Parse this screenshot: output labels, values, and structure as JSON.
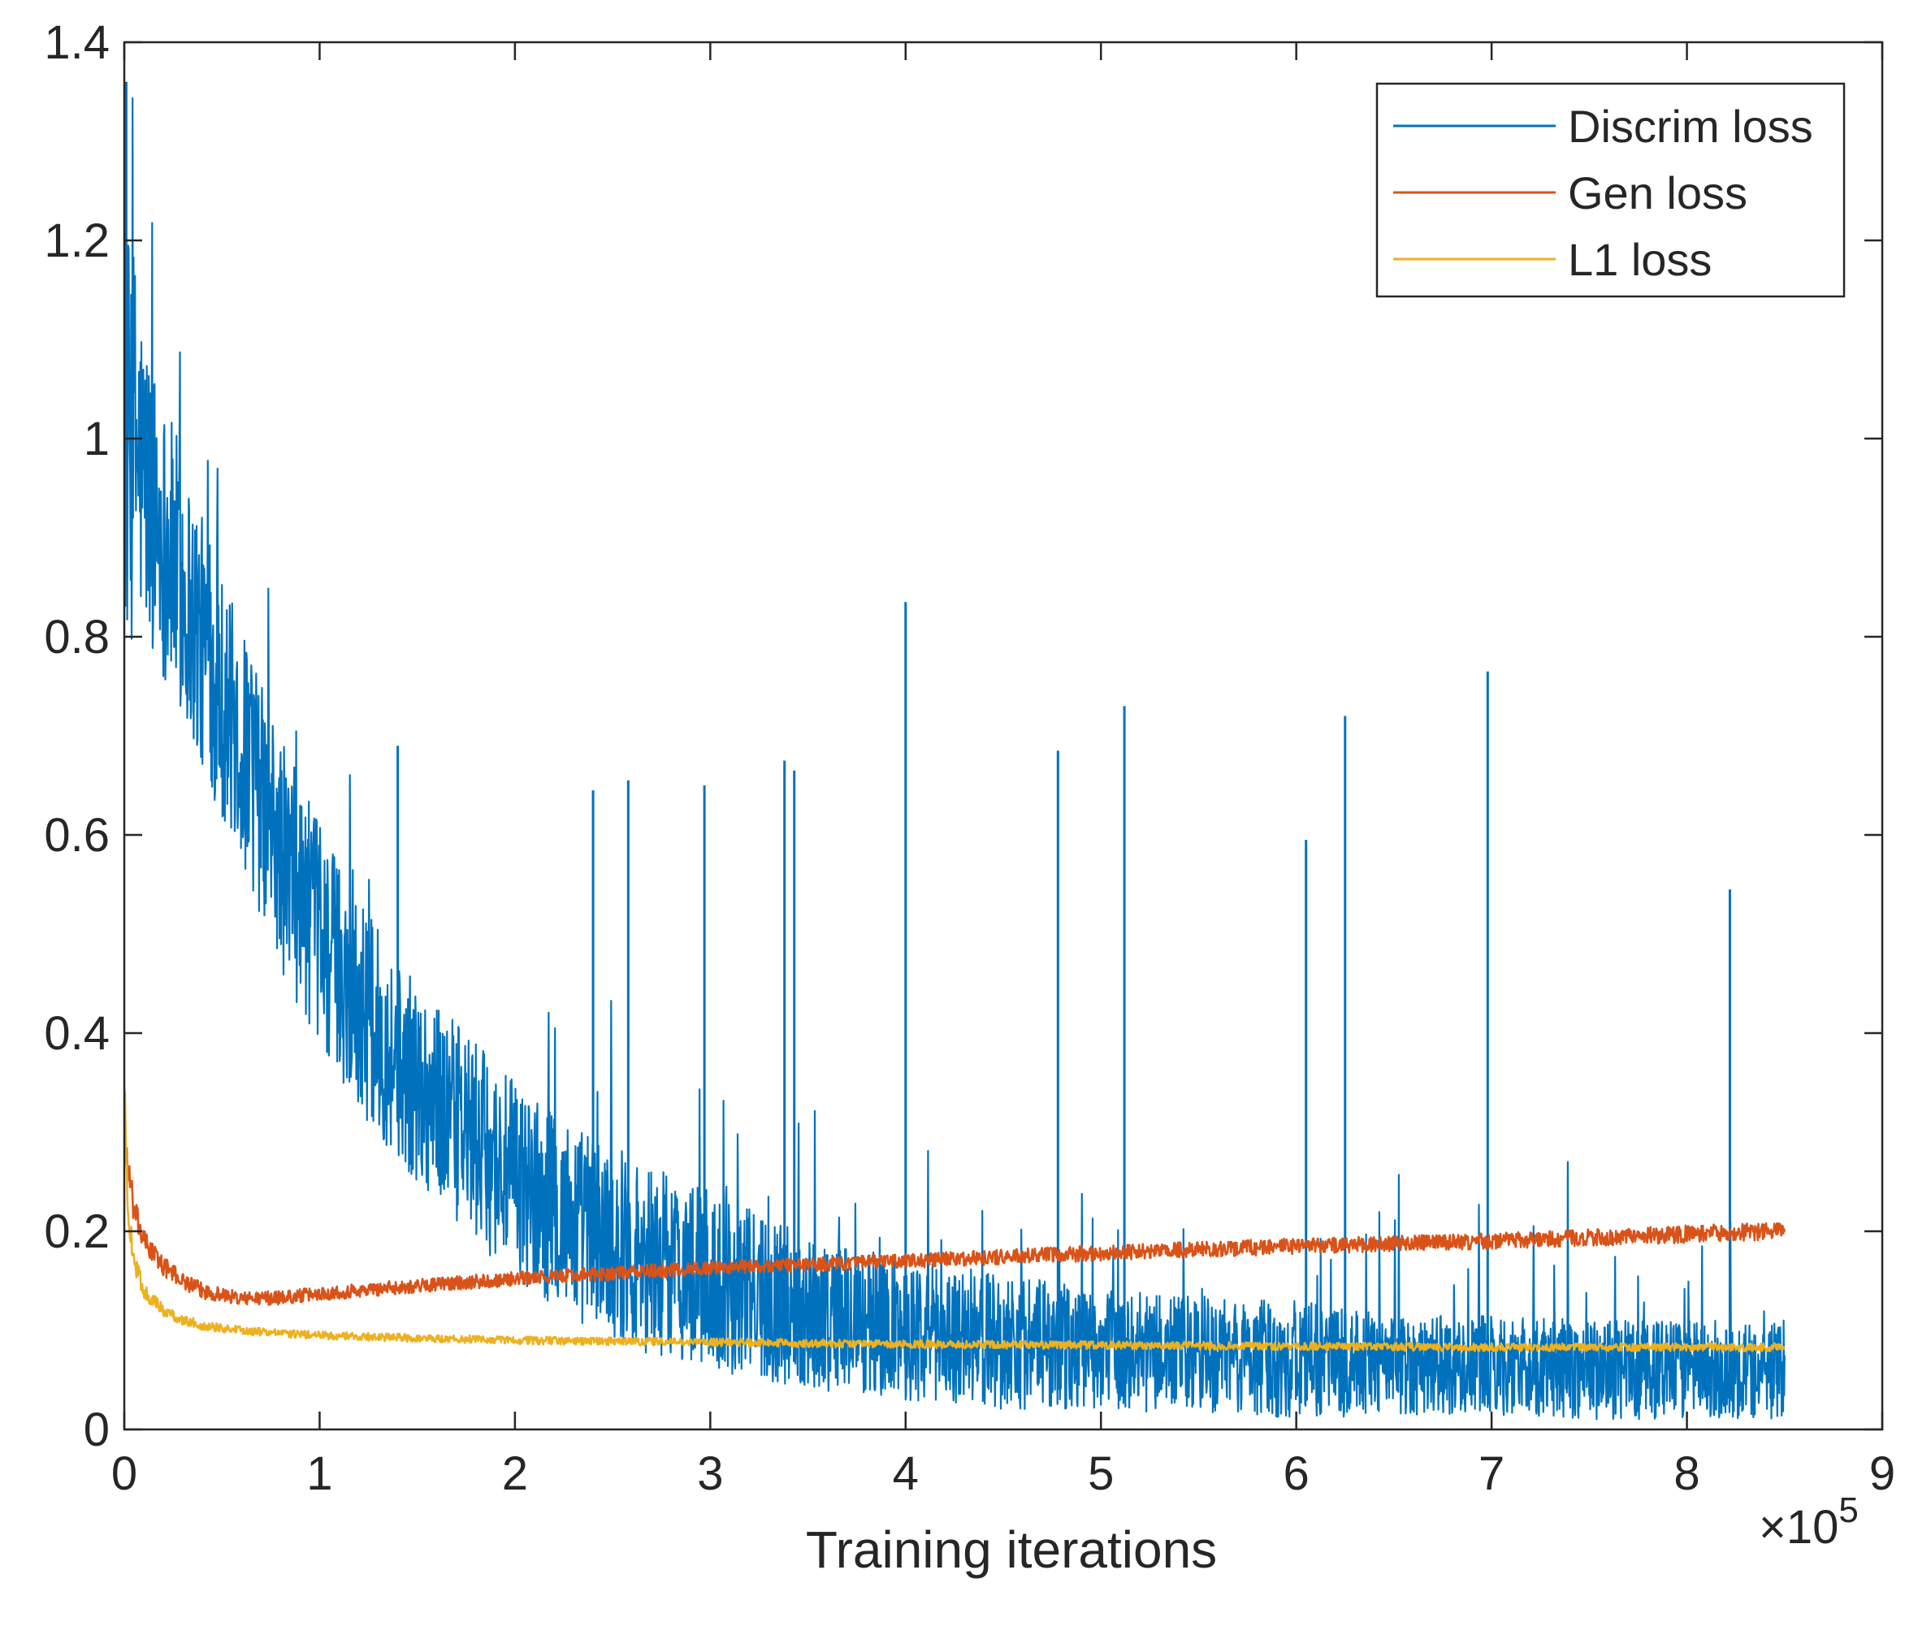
{
  "chart_data": {
    "type": "line",
    "xlabel": "Training iterations",
    "ylabel": "",
    "xlim": [
      0,
      900000
    ],
    "ylim": [
      0,
      1.4
    ],
    "x_ticks": [
      0,
      1,
      2,
      3,
      4,
      5,
      6,
      7,
      8,
      9
    ],
    "y_ticks": [
      0,
      0.2,
      0.4,
      0.6,
      0.8,
      1,
      1.2,
      1.4
    ],
    "x_tick_labels": [
      "0",
      "1",
      "2",
      "3",
      "4",
      "5",
      "6",
      "7",
      "8",
      "9"
    ],
    "y_tick_labels": [
      "0",
      "0.2",
      "0.4",
      "0.6",
      "0.8",
      "1",
      "1.2",
      "1.4"
    ],
    "x_exponent": {
      "base": "×10",
      "power": "5"
    },
    "grid": false,
    "legend_position": "top-right",
    "series": [
      {
        "name": "Discrim loss",
        "color": "#0072BD",
        "x": [
          0,
          5000,
          10000,
          20000,
          30000,
          40000,
          60000,
          80000,
          100000,
          120000,
          140000,
          160000,
          180000,
          200000,
          230000,
          260000,
          300000,
          350000,
          400000,
          450000,
          500000,
          550000,
          600000,
          650000,
          700000,
          750000,
          800000,
          850000
        ],
        "y": [
          1.0,
          1.0,
          0.96,
          0.9,
          0.85,
          0.79,
          0.69,
          0.58,
          0.5,
          0.43,
          0.37,
          0.33,
          0.29,
          0.25,
          0.21,
          0.18,
          0.15,
          0.12,
          0.1,
          0.09,
          0.08,
          0.075,
          0.07,
          0.065,
          0.065,
          0.06,
          0.06,
          0.06
        ],
        "spread": [
          0.22,
          0.2,
          0.16,
          0.14,
          0.14,
          0.13,
          0.12,
          0.12,
          0.11,
          0.11,
          0.1,
          0.1,
          0.1,
          0.1,
          0.1,
          0.1,
          0.09,
          0.08,
          0.07,
          0.07,
          0.06,
          0.06,
          0.06,
          0.05,
          0.05,
          0.05,
          0.05,
          0.05
        ],
        "spikes": [
          {
            "x": 1000,
            "y": 1.36
          },
          {
            "x": 140000,
            "y": 0.69
          },
          {
            "x": 240000,
            "y": 0.645
          },
          {
            "x": 258000,
            "y": 0.655
          },
          {
            "x": 297000,
            "y": 0.65
          },
          {
            "x": 338000,
            "y": 0.675
          },
          {
            "x": 343000,
            "y": 0.665
          },
          {
            "x": 400000,
            "y": 0.835
          },
          {
            "x": 478000,
            "y": 0.685
          },
          {
            "x": 512000,
            "y": 0.73
          },
          {
            "x": 605000,
            "y": 0.595
          },
          {
            "x": 625000,
            "y": 0.72
          },
          {
            "x": 698000,
            "y": 0.765
          },
          {
            "x": 822000,
            "y": 0.545
          }
        ]
      },
      {
        "name": "Gen loss",
        "color": "#D95319",
        "x": [
          0,
          2000,
          5000,
          10000,
          20000,
          30000,
          40000,
          60000,
          80000,
          100000,
          150000,
          200000,
          300000,
          400000,
          500000,
          600000,
          700000,
          800000,
          850000
        ],
        "y": [
          0.3,
          0.26,
          0.22,
          0.19,
          0.165,
          0.15,
          0.14,
          0.132,
          0.133,
          0.137,
          0.145,
          0.152,
          0.163,
          0.17,
          0.178,
          0.185,
          0.19,
          0.197,
          0.2
        ],
        "spread": [
          0.02,
          0.02,
          0.015,
          0.012,
          0.01,
          0.008,
          0.008,
          0.007,
          0.007,
          0.007,
          0.007,
          0.007,
          0.007,
          0.007,
          0.008,
          0.008,
          0.008,
          0.009,
          0.009
        ]
      },
      {
        "name": "L1 loss",
        "color": "#EDB120",
        "x": [
          0,
          2000,
          5000,
          10000,
          20000,
          30000,
          40000,
          60000,
          80000,
          100000,
          150000,
          200000,
          300000,
          400000,
          500000,
          600000,
          700000,
          800000,
          850000
        ],
        "y": [
          0.34,
          0.22,
          0.17,
          0.14,
          0.12,
          0.11,
          0.105,
          0.1,
          0.097,
          0.095,
          0.092,
          0.09,
          0.088,
          0.086,
          0.085,
          0.084,
          0.083,
          0.083,
          0.083
        ],
        "spread": [
          0.02,
          0.015,
          0.01,
          0.008,
          0.006,
          0.005,
          0.005,
          0.004,
          0.004,
          0.004,
          0.004,
          0.004,
          0.004,
          0.004,
          0.004,
          0.004,
          0.004,
          0.004,
          0.004
        ]
      }
    ]
  }
}
